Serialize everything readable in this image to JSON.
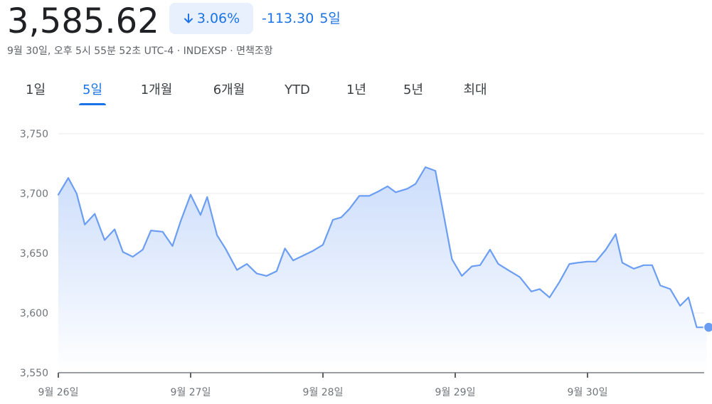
{
  "quote": {
    "price": "3,585.62",
    "pct_change": "3.06%",
    "abs_change": "-113.30",
    "period_label": "5일",
    "direction_icon": "arrow-down-icon",
    "meta": "9월 30일, 오후 5시 55분 52초 UTC-4 · INDEXSP · 면책조항"
  },
  "tabs": [
    {
      "label": "1일",
      "active": false
    },
    {
      "label": "5일",
      "active": true
    },
    {
      "label": "1개월",
      "active": false
    },
    {
      "label": "6개월",
      "active": false
    },
    {
      "label": "YTD",
      "active": false
    },
    {
      "label": "1년",
      "active": false
    },
    {
      "label": "5년",
      "active": false
    },
    {
      "label": "최대",
      "active": false
    }
  ],
  "colors": {
    "accent": "#1a73e8",
    "line": "#6b9ef2",
    "fill_top": "#c9dbfb",
    "badge_bg": "#e8f0fe"
  },
  "chart_data": {
    "type": "area",
    "ylim": [
      3550,
      3750
    ],
    "yticks": [
      3550,
      3600,
      3650,
      3700,
      3750
    ],
    "ytick_labels": [
      "3,550",
      "3,600",
      "3,650",
      "3,700",
      "3,750"
    ],
    "xlim": [
      0,
      5.0
    ],
    "xticks": [
      0,
      1,
      2,
      3,
      4
    ],
    "xtick_labels": [
      "9월 26일",
      "9월 27일",
      "9월 28일",
      "9월 29일",
      "9월 30일"
    ],
    "grid": true,
    "series": [
      {
        "x": [
          0,
          0.075,
          0.138,
          0.2,
          0.275,
          0.35,
          0.425,
          0.488,
          0.563,
          0.638,
          0.7,
          0.788,
          0.863,
          0.925,
          1.0,
          1.075,
          1.125,
          1.2,
          1.263,
          1.35,
          1.425,
          1.5,
          1.575,
          1.65,
          1.713,
          1.775,
          1.85,
          1.925,
          2.0,
          2.075,
          2.138,
          2.2,
          2.275,
          2.35,
          2.425,
          2.488,
          2.55,
          2.638,
          2.7,
          2.775,
          2.85,
          2.913,
          2.975,
          3.05,
          3.125,
          3.188,
          3.263,
          3.325,
          3.413,
          3.488,
          3.575,
          3.638,
          3.713,
          3.788,
          3.863,
          3.925,
          4.0,
          4.063,
          4.138,
          4.213,
          4.263,
          4.35,
          4.425,
          4.488,
          4.55,
          4.625,
          4.7,
          4.763,
          4.825,
          4.9
        ],
        "values": [
          3699,
          3713,
          3700,
          3674,
          3683,
          3661,
          3670,
          3651,
          3647,
          3653,
          3669,
          3668,
          3656,
          3677,
          3699,
          3682,
          3697,
          3665,
          3654,
          3636,
          3641,
          3633,
          3631,
          3635,
          3654,
          3644,
          3648,
          3652,
          3657,
          3678,
          3680,
          3687,
          3698,
          3698,
          3702,
          3706,
          3701,
          3704,
          3708,
          3722,
          3719,
          3682,
          3645,
          3631,
          3639,
          3640,
          3653,
          3641,
          3635,
          3630,
          3618,
          3620,
          3613,
          3626,
          3641,
          3642,
          3643,
          3643,
          3653,
          3666,
          3642,
          3637,
          3640,
          3640,
          3623,
          3620,
          3606,
          3613,
          3588,
          3588
        ]
      }
    ]
  }
}
